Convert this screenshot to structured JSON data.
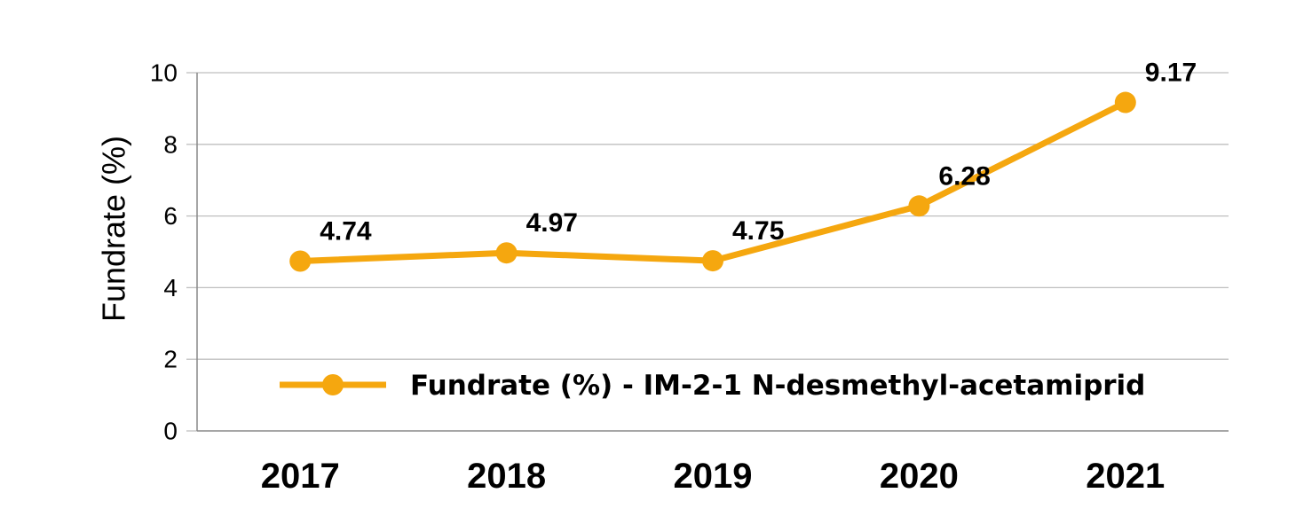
{
  "chart_data": {
    "type": "line",
    "categories": [
      "2017",
      "2018",
      "2019",
      "2020",
      "2021"
    ],
    "series": [
      {
        "name": "Fundrate (%) - IM-2-1 N-desmethyl-acetamiprid",
        "values": [
          4.74,
          4.97,
          4.75,
          6.28,
          9.17
        ],
        "color": "#F5A70F"
      }
    ],
    "data_labels": [
      "4.74",
      "4.97",
      "4.75",
      "6.28",
      "9.17"
    ],
    "xlabel": "",
    "ylabel": "Fundrate (%)",
    "ylim": [
      0,
      10
    ],
    "yticks": [
      "0",
      "2",
      "4",
      "6",
      "8",
      "10"
    ],
    "grid": "horizontal",
    "legend_placement": "bottom-center",
    "colors": {
      "grid": "#BFBFBF",
      "axis": "#888888"
    }
  }
}
